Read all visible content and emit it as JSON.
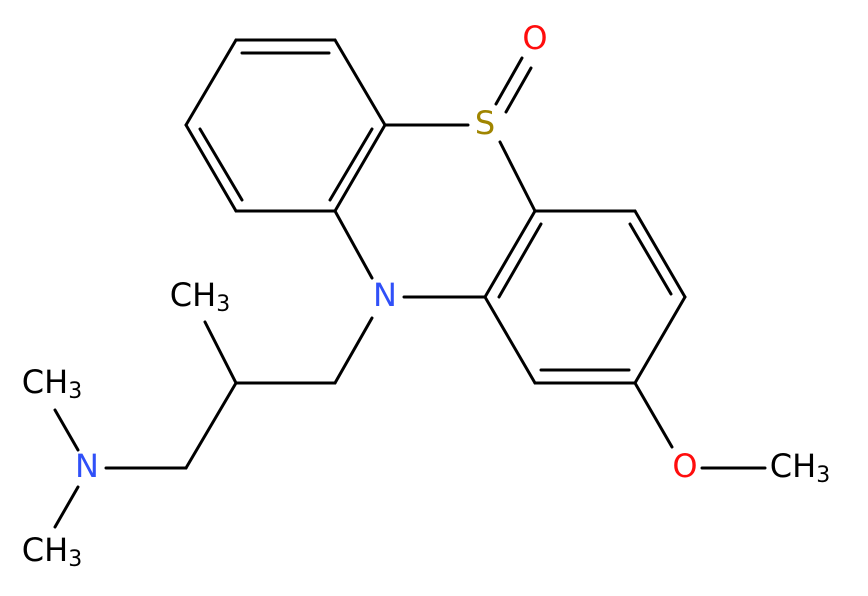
{
  "atoms": [
    {
      "label": "O",
      "color": "#ff0d0d"
    },
    {
      "label": "S",
      "color": "#a08500"
    },
    {
      "label": "N",
      "color": "#3050f8"
    },
    {
      "label": "CH",
      "sub": "3",
      "color": "#000000"
    },
    {
      "label": "N",
      "color": "#3050f8"
    },
    {
      "label": "CH",
      "sub": "3",
      "color": "#000000"
    },
    {
      "label": "CH",
      "sub": "3",
      "color": "#000000"
    },
    {
      "label": "O",
      "color": "#ff0d0d"
    },
    {
      "label": "CH",
      "sub": "3",
      "color": "#000000"
    }
  ]
}
